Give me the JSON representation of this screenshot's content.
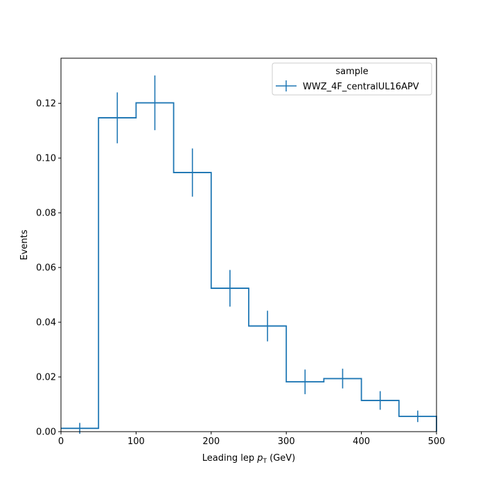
{
  "chart_data": {
    "type": "histogram-step",
    "xlabel_main": "Leading lep ",
    "xlabel_italic": "p",
    "xlabel_sub": "T",
    "xlabel_unit": " (GeV)",
    "ylabel": "Events",
    "xlim": [
      0,
      500
    ],
    "ylim": [
      0,
      0.1365
    ],
    "xticks": [
      0,
      100,
      200,
      300,
      400,
      500
    ],
    "xtick_labels": [
      "0",
      "100",
      "200",
      "300",
      "400",
      "500"
    ],
    "yticks": [
      0,
      0.02,
      0.04,
      0.06,
      0.08,
      0.1,
      0.12
    ],
    "ytick_labels": [
      "0.00",
      "0.02",
      "0.04",
      "0.06",
      "0.08",
      "0.10",
      "0.12"
    ],
    "bin_edges": [
      0,
      50,
      100,
      150,
      200,
      250,
      300,
      350,
      400,
      450,
      500
    ],
    "series": [
      {
        "name": "WWZ_4F_centralUL16APV",
        "color": "#1f77b4",
        "values": [
          0.0012,
          0.1147,
          0.1202,
          0.0947,
          0.0524,
          0.0386,
          0.0182,
          0.0194,
          0.0114,
          0.0056
        ],
        "errors": [
          0.002,
          0.0093,
          0.01,
          0.0088,
          0.0067,
          0.0056,
          0.0045,
          0.0036,
          0.0034,
          0.0021
        ]
      }
    ],
    "legend": {
      "title": "sample",
      "position": "upper-right"
    },
    "grid": false
  }
}
